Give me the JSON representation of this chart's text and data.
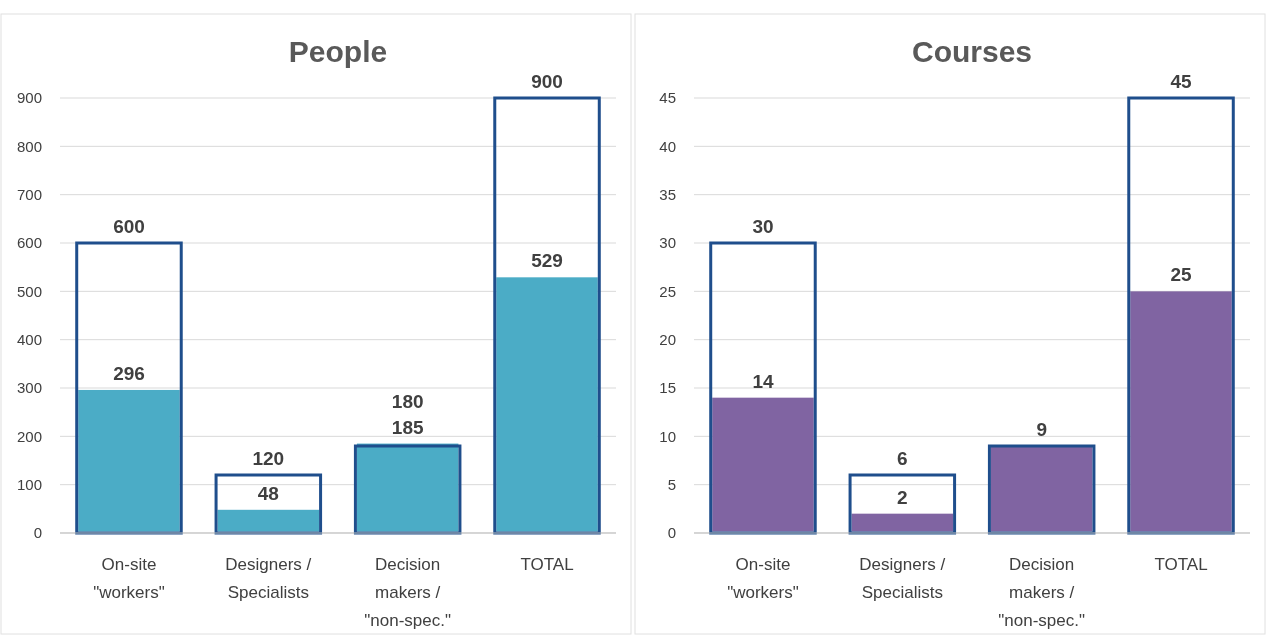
{
  "chart_data": [
    {
      "type": "bar",
      "title": "People",
      "categories": [
        "On-site\n\"workers\"",
        "Designers /\nSpecialists",
        "Decision\nmakers /\n\"non-spec.\"",
        "TOTAL"
      ],
      "ylim": [
        0,
        900
      ],
      "yticks": [
        0,
        100,
        200,
        300,
        400,
        500,
        600,
        700,
        800,
        900
      ],
      "grid": "y",
      "series": [
        {
          "color": "#1f4e8c",
          "values": [
            600,
            120,
            180,
            900
          ],
          "value_labels": [
            "600",
            "120",
            "180",
            "900"
          ]
        },
        {
          "color": "#4bacc6",
          "values": [
            296,
            48,
            185,
            529
          ],
          "value_labels": [
            "296",
            "48",
            "185",
            "529"
          ]
        }
      ]
    },
    {
      "type": "bar",
      "title": "Courses",
      "categories": [
        "On-site\n\"workers\"",
        "Designers /\nSpecialists",
        "Decision\nmakers /\n\"non-spec.\"",
        "TOTAL"
      ],
      "ylim": [
        0,
        45
      ],
      "yticks": [
        0,
        5,
        10,
        15,
        20,
        25,
        30,
        35,
        40,
        45
      ],
      "grid": "y",
      "series": [
        {
          "color": "#1f4e8c",
          "values": [
            30,
            6,
            9,
            45
          ],
          "value_labels": [
            "30",
            "6",
            null,
            "45"
          ]
        },
        {
          "color": "#8064a2",
          "values": [
            14,
            2,
            9,
            25
          ],
          "value_labels": [
            "14",
            "2",
            "9",
            "25"
          ]
        }
      ]
    }
  ]
}
